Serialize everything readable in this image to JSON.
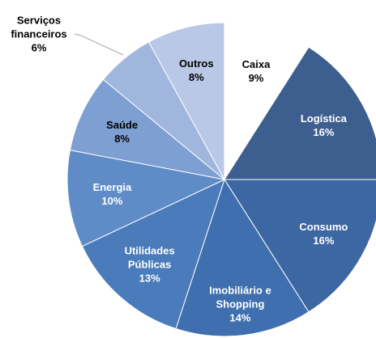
{
  "chart_data": {
    "type": "pie",
    "categories": [
      "Caixa",
      "Logística",
      "Consumo",
      "Imobiliário e Shopping",
      "Utilidades Públicas",
      "Energia",
      "Saúde",
      "Serviços financeiros",
      "Outros"
    ],
    "values": [
      9,
      16,
      16,
      14,
      13,
      10,
      8,
      6,
      8
    ],
    "value_labels": [
      "9%",
      "16%",
      "16%",
      "14%",
      "13%",
      "10%",
      "8%",
      "6%",
      "8%"
    ],
    "colors": [
      "#ffffff",
      "#3c5f8f",
      "#3d67a2",
      "#3f6fae",
      "#4a7bba",
      "#5f8cc6",
      "#7e9fd1",
      "#a0b6dd",
      "#b9c8e6"
    ]
  }
}
